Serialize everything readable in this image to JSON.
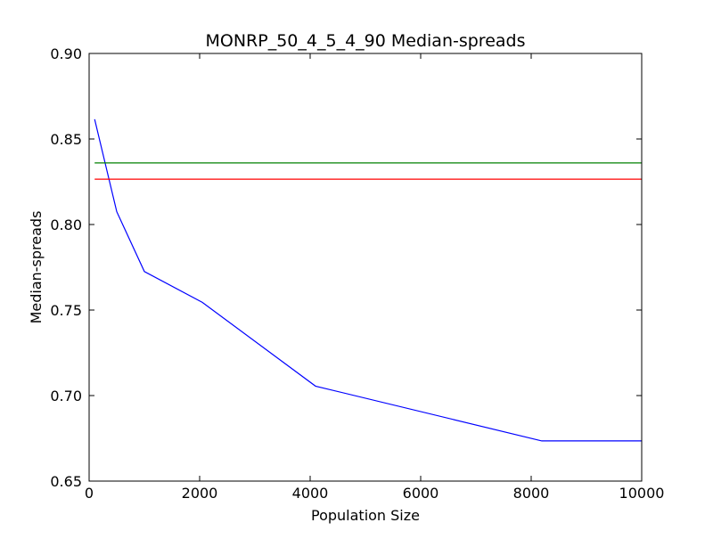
{
  "chart_data": {
    "type": "line",
    "title": "MONRP_50_4_5_4_90 Median-spreads",
    "xlabel": "Population Size",
    "ylabel": "Median-spreads",
    "xlim": [
      0,
      10000
    ],
    "ylim": [
      0.65,
      0.9
    ],
    "xticks": [
      0,
      2000,
      4000,
      6000,
      8000,
      10000
    ],
    "xtick_labels": [
      "0",
      "2000",
      "4000",
      "6000",
      "8000",
      "10000"
    ],
    "yticks": [
      0.65,
      0.7,
      0.75,
      0.8,
      0.85,
      0.9
    ],
    "ytick_labels": [
      "0.65",
      "0.70",
      "0.75",
      "0.80",
      "0.85",
      "0.90"
    ],
    "grid": false,
    "legend": "none",
    "series": [
      {
        "color": "#0000ff",
        "x": [
          100,
          500,
          1000,
          2048,
          4096,
          8192,
          10000
        ],
        "y": [
          0.8615,
          0.8075,
          0.7725,
          0.7545,
          0.7055,
          0.6735,
          0.6735
        ]
      },
      {
        "color": "#008000",
        "x": [
          100,
          10000
        ],
        "y": [
          0.836,
          0.836
        ]
      },
      {
        "color": "#ff0000",
        "x": [
          100,
          10000
        ],
        "y": [
          0.8265,
          0.8265
        ]
      }
    ]
  }
}
